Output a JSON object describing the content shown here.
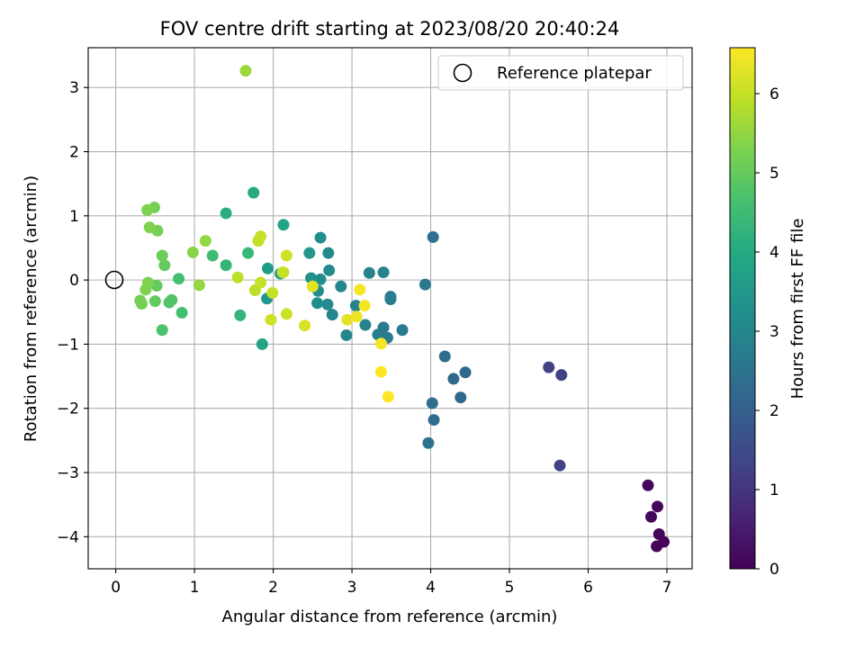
{
  "chart_data": {
    "type": "scatter",
    "title": "FOV centre drift starting at 2023/08/20 20:40:24",
    "xlabel": "Angular distance from reference (arcmin)",
    "ylabel": "Rotation from reference (arcmin)",
    "xlim": [
      -0.35,
      7.32
    ],
    "ylim": [
      -4.5,
      3.62
    ],
    "x_ticks": [
      0,
      1,
      2,
      3,
      4,
      5,
      6,
      7
    ],
    "y_ticks": [
      -4,
      -3,
      -2,
      -1,
      0,
      1,
      2,
      3
    ],
    "grid": true,
    "legend": {
      "placement": "top-right",
      "entries": [
        "Reference platepar"
      ]
    },
    "reference_point": {
      "x": 0,
      "y": 0,
      "label": "Reference platepar"
    },
    "colorbar": {
      "label": "Hours from first FF file",
      "colormap": "viridis",
      "range": [
        0,
        6.58
      ],
      "ticks": [
        0,
        1,
        2,
        3,
        4,
        5,
        6
      ]
    },
    "points": [
      {
        "x": 6.76,
        "y": -3.2,
        "c": 0.1
      },
      {
        "x": 6.88,
        "y": -3.53,
        "c": 0.1
      },
      {
        "x": 6.8,
        "y": -3.69,
        "c": 0.15
      },
      {
        "x": 6.9,
        "y": -3.96,
        "c": 0.12
      },
      {
        "x": 6.96,
        "y": -4.08,
        "c": 0.1
      },
      {
        "x": 6.87,
        "y": -4.15,
        "c": 0.08
      },
      {
        "x": 5.5,
        "y": -1.36,
        "c": 1.25
      },
      {
        "x": 5.66,
        "y": -1.48,
        "c": 1.3
      },
      {
        "x": 5.64,
        "y": -2.89,
        "c": 1.3
      },
      {
        "x": 4.44,
        "y": -1.44,
        "c": 2.2
      },
      {
        "x": 4.18,
        "y": -1.19,
        "c": 2.3
      },
      {
        "x": 4.29,
        "y": -1.54,
        "c": 2.2
      },
      {
        "x": 4.38,
        "y": -1.83,
        "c": 2.2
      },
      {
        "x": 4.03,
        "y": 0.67,
        "c": 2.4
      },
      {
        "x": 4.02,
        "y": -1.92,
        "c": 2.4
      },
      {
        "x": 4.04,
        "y": -2.18,
        "c": 2.4
      },
      {
        "x": 3.97,
        "y": -2.54,
        "c": 2.5
      },
      {
        "x": 3.93,
        "y": -0.07,
        "c": 2.6
      },
      {
        "x": 3.64,
        "y": -0.78,
        "c": 2.7
      },
      {
        "x": 3.49,
        "y": -0.26,
        "c": 2.7
      },
      {
        "x": 3.49,
        "y": -0.3,
        "c": 2.8
      },
      {
        "x": 3.45,
        "y": -0.9,
        "c": 2.7
      },
      {
        "x": 3.4,
        "y": -0.74,
        "c": 2.7
      },
      {
        "x": 3.33,
        "y": -0.85,
        "c": 2.8
      },
      {
        "x": 3.4,
        "y": 0.12,
        "c": 2.9
      },
      {
        "x": 3.22,
        "y": 0.11,
        "c": 2.9
      },
      {
        "x": 3.17,
        "y": -0.7,
        "c": 2.9
      },
      {
        "x": 3.05,
        "y": -0.4,
        "c": 2.9
      },
      {
        "x": 2.93,
        "y": -0.86,
        "c": 3.0
      },
      {
        "x": 2.86,
        "y": -0.1,
        "c": 3.0
      },
      {
        "x": 2.75,
        "y": -0.54,
        "c": 3.0
      },
      {
        "x": 2.7,
        "y": 0.42,
        "c": 3.1
      },
      {
        "x": 2.71,
        "y": 0.15,
        "c": 3.1
      },
      {
        "x": 2.69,
        "y": -0.38,
        "c": 3.1
      },
      {
        "x": 2.6,
        "y": 0.66,
        "c": 3.2
      },
      {
        "x": 2.6,
        "y": 0.01,
        "c": 3.2
      },
      {
        "x": 2.57,
        "y": -0.17,
        "c": 3.2
      },
      {
        "x": 2.56,
        "y": -0.36,
        "c": 3.2
      },
      {
        "x": 2.48,
        "y": 0.03,
        "c": 3.3
      },
      {
        "x": 2.46,
        "y": 0.42,
        "c": 3.5
      },
      {
        "x": 2.13,
        "y": 0.86,
        "c": 3.8
      },
      {
        "x": 2.09,
        "y": 0.1,
        "c": 3.7
      },
      {
        "x": 1.93,
        "y": 0.18,
        "c": 3.6
      },
      {
        "x": 1.92,
        "y": -0.29,
        "c": 3.5
      },
      {
        "x": 1.86,
        "y": -1.0,
        "c": 3.8
      },
      {
        "x": 1.75,
        "y": 1.36,
        "c": 4.0
      },
      {
        "x": 1.4,
        "y": 1.04,
        "c": 4.1
      },
      {
        "x": 1.4,
        "y": 0.23,
        "c": 4.3
      },
      {
        "x": 1.68,
        "y": 0.42,
        "c": 4.4
      },
      {
        "x": 1.58,
        "y": -0.55,
        "c": 4.3
      },
      {
        "x": 1.23,
        "y": 0.38,
        "c": 4.5
      },
      {
        "x": 0.84,
        "y": -0.51,
        "c": 4.6
      },
      {
        "x": 0.8,
        "y": 0.02,
        "c": 4.6
      },
      {
        "x": 0.59,
        "y": -0.78,
        "c": 4.7
      },
      {
        "x": 0.68,
        "y": -0.35,
        "c": 4.8
      },
      {
        "x": 0.71,
        "y": -0.31,
        "c": 4.8
      },
      {
        "x": 0.62,
        "y": 0.23,
        "c": 5.0
      },
      {
        "x": 0.59,
        "y": 0.38,
        "c": 5.1
      },
      {
        "x": 0.5,
        "y": -0.33,
        "c": 5.0
      },
      {
        "x": 0.52,
        "y": -0.09,
        "c": 5.0
      },
      {
        "x": 0.49,
        "y": 1.13,
        "c": 5.2
      },
      {
        "x": 0.4,
        "y": 1.09,
        "c": 5.3
      },
      {
        "x": 0.53,
        "y": 0.77,
        "c": 5.2
      },
      {
        "x": 0.43,
        "y": 0.82,
        "c": 5.3
      },
      {
        "x": 0.31,
        "y": -0.32,
        "c": 5.2
      },
      {
        "x": 0.33,
        "y": -0.37,
        "c": 5.2
      },
      {
        "x": 0.38,
        "y": -0.15,
        "c": 5.3
      },
      {
        "x": 0.41,
        "y": -0.04,
        "c": 5.3
      },
      {
        "x": 0.98,
        "y": 0.43,
        "c": 5.4
      },
      {
        "x": 1.14,
        "y": 0.61,
        "c": 5.5
      },
      {
        "x": 1.06,
        "y": -0.08,
        "c": 5.5
      },
      {
        "x": 1.65,
        "y": 3.26,
        "c": 5.6
      },
      {
        "x": 1.55,
        "y": 0.04,
        "c": 5.9
      },
      {
        "x": 1.77,
        "y": -0.16,
        "c": 5.9
      },
      {
        "x": 1.84,
        "y": -0.04,
        "c": 6.0
      },
      {
        "x": 1.81,
        "y": 0.61,
        "c": 6.0
      },
      {
        "x": 1.84,
        "y": 0.68,
        "c": 6.0
      },
      {
        "x": 2.13,
        "y": 0.12,
        "c": 6.0
      },
      {
        "x": 2.12,
        "y": 0.12,
        "c": 6.0
      },
      {
        "x": 1.99,
        "y": -0.2,
        "c": 6.0
      },
      {
        "x": 2.17,
        "y": 0.38,
        "c": 6.1
      },
      {
        "x": 1.97,
        "y": -0.62,
        "c": 6.1
      },
      {
        "x": 2.17,
        "y": -0.53,
        "c": 6.1
      },
      {
        "x": 2.4,
        "y": -0.71,
        "c": 6.2
      },
      {
        "x": 2.5,
        "y": -0.1,
        "c": 6.3
      },
      {
        "x": 2.94,
        "y": -0.62,
        "c": 6.3
      },
      {
        "x": 3.06,
        "y": -0.57,
        "c": 6.4
      },
      {
        "x": 3.16,
        "y": -0.4,
        "c": 6.5
      },
      {
        "x": 3.1,
        "y": -0.15,
        "c": 6.5
      },
      {
        "x": 3.37,
        "y": -0.99,
        "c": 6.5
      },
      {
        "x": 3.37,
        "y": -1.43,
        "c": 6.6
      },
      {
        "x": 3.46,
        "y": -1.82,
        "c": 6.6
      }
    ]
  }
}
